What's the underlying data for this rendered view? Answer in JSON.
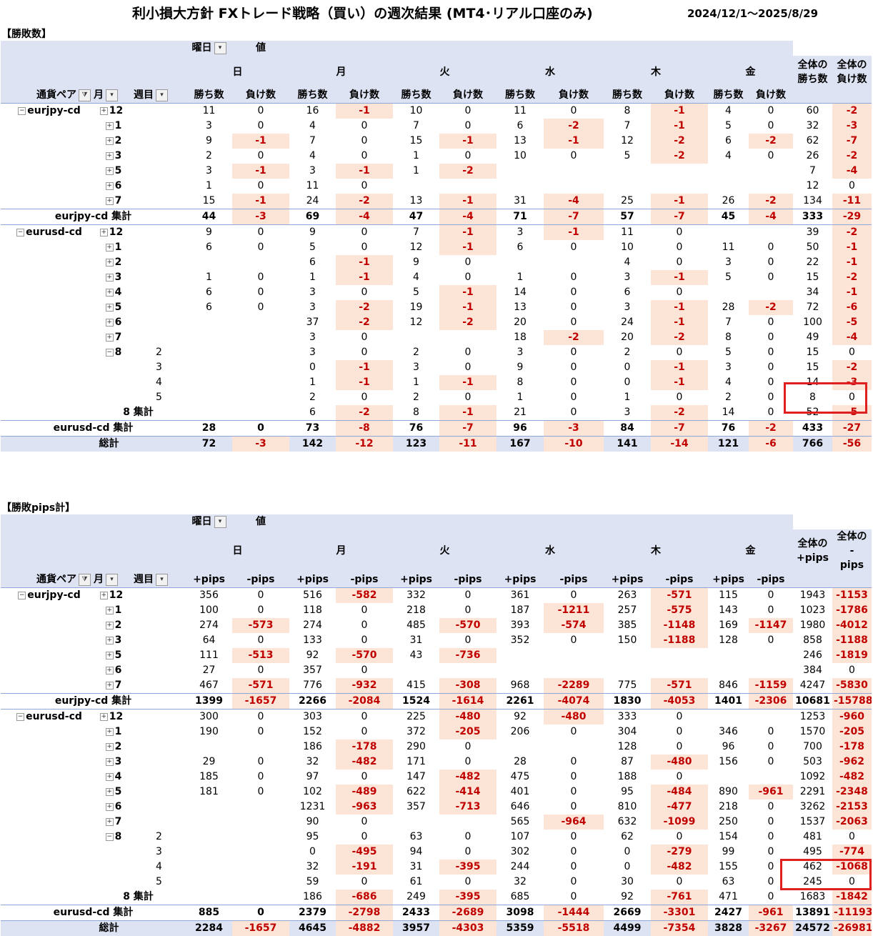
{
  "title": "利小損大方針 FXトレード戦略（買い）の週次結果 (MT4･リアル口座のみ)",
  "date_range": "2024/12/1～2025/8/29",
  "headers": {
    "weekday": "曜日",
    "value": "値",
    "pair": "通貨ペア",
    "month": "月",
    "week": "週目",
    "days": [
      "日",
      "月",
      "火",
      "水",
      "木",
      "金"
    ],
    "total_win": "全体の\n勝ち数",
    "total_loss": "全体の\n負け数",
    "total_pp": "全体の\n+pips",
    "total_mp": "全体の -\npips",
    "win": "勝ち数",
    "loss": "負け数",
    "pp": "+pips",
    "mp": "-pips"
  },
  "count_section": {
    "label": "【勝敗数】",
    "rows": [
      {
        "type": "m",
        "pair": "eurjpy-cd",
        "exp": "⊟",
        "m": "12",
        "w": "",
        "v": [
          "11",
          "0",
          "16",
          "-1",
          "10",
          "0",
          "11",
          "0",
          "8",
          "-1",
          "4",
          "0",
          "60",
          "-2"
        ]
      },
      {
        "type": "m",
        "m": "1",
        "v": [
          "3",
          "0",
          "4",
          "0",
          "7",
          "0",
          "6",
          "-2",
          "7",
          "-1",
          "5",
          "0",
          "32",
          "-3"
        ]
      },
      {
        "type": "m",
        "m": "2",
        "v": [
          "9",
          "-1",
          "7",
          "0",
          "15",
          "-1",
          "13",
          "-1",
          "12",
          "-2",
          "6",
          "-2",
          "62",
          "-7"
        ]
      },
      {
        "type": "m",
        "m": "3",
        "v": [
          "2",
          "0",
          "4",
          "0",
          "1",
          "0",
          "10",
          "0",
          "5",
          "-2",
          "4",
          "0",
          "26",
          "-2"
        ]
      },
      {
        "type": "m",
        "m": "5",
        "v": [
          "3",
          "-1",
          "3",
          "-1",
          "1",
          "-2",
          "",
          "",
          "",
          "",
          "",
          "",
          "7",
          "-4"
        ]
      },
      {
        "type": "m",
        "m": "6",
        "v": [
          "1",
          "0",
          "11",
          "0",
          "",
          "",
          "",
          "",
          "",
          "",
          "",
          "",
          "12",
          "0"
        ]
      },
      {
        "type": "m",
        "m": "7",
        "v": [
          "15",
          "-1",
          "24",
          "-2",
          "13",
          "-1",
          "31",
          "-4",
          "25",
          "-1",
          "26",
          "-2",
          "134",
          "-11"
        ]
      },
      {
        "type": "sub",
        "label": "eurjpy-cd 集計",
        "v": [
          "44",
          "-3",
          "69",
          "-4",
          "47",
          "-4",
          "71",
          "-7",
          "57",
          "-7",
          "45",
          "-4",
          "333",
          "-29"
        ]
      },
      {
        "type": "m",
        "pair": "eurusd-cd",
        "exp": "⊟",
        "m": "12",
        "v": [
          "9",
          "0",
          "9",
          "0",
          "7",
          "-1",
          "3",
          "-1",
          "11",
          "0",
          "",
          "",
          "39",
          "-2"
        ]
      },
      {
        "type": "m",
        "m": "1",
        "v": [
          "6",
          "0",
          "5",
          "0",
          "12",
          "-1",
          "6",
          "0",
          "10",
          "0",
          "11",
          "0",
          "50",
          "-1"
        ]
      },
      {
        "type": "m",
        "m": "2",
        "v": [
          "",
          "",
          "6",
          "-1",
          "9",
          "0",
          "",
          "",
          "4",
          "0",
          "3",
          "0",
          "22",
          "-1"
        ]
      },
      {
        "type": "m",
        "m": "3",
        "v": [
          "1",
          "0",
          "1",
          "-1",
          "4",
          "0",
          "1",
          "0",
          "3",
          "-1",
          "5",
          "0",
          "15",
          "-2"
        ]
      },
      {
        "type": "m",
        "m": "4",
        "v": [
          "6",
          "0",
          "3",
          "0",
          "5",
          "-1",
          "14",
          "0",
          "6",
          "0",
          "",
          "",
          "34",
          "-1"
        ]
      },
      {
        "type": "m",
        "m": "5",
        "v": [
          "6",
          "0",
          "3",
          "-2",
          "19",
          "-1",
          "13",
          "0",
          "3",
          "-1",
          "28",
          "-2",
          "72",
          "-6"
        ]
      },
      {
        "type": "m",
        "m": "6",
        "v": [
          "",
          "",
          "37",
          "-2",
          "12",
          "-2",
          "20",
          "0",
          "24",
          "-1",
          "7",
          "0",
          "100",
          "-5"
        ]
      },
      {
        "type": "m",
        "m": "7",
        "v": [
          "",
          "",
          "3",
          "0",
          "",
          "",
          "18",
          "-2",
          "20",
          "-2",
          "8",
          "0",
          "49",
          "-4"
        ]
      },
      {
        "type": "m",
        "m": "8",
        "mexp": "⊟",
        "w": "2",
        "v": [
          "",
          "",
          "3",
          "0",
          "2",
          "0",
          "3",
          "0",
          "2",
          "0",
          "5",
          "0",
          "15",
          "0"
        ]
      },
      {
        "type": "w",
        "w": "3",
        "v": [
          "",
          "",
          "0",
          "-1",
          "3",
          "0",
          "9",
          "0",
          "0",
          "-1",
          "3",
          "0",
          "15",
          "-2"
        ]
      },
      {
        "type": "w",
        "w": "4",
        "v": [
          "",
          "",
          "1",
          "-1",
          "1",
          "-1",
          "8",
          "0",
          "0",
          "-1",
          "4",
          "0",
          "14",
          "-3"
        ]
      },
      {
        "type": "w",
        "w": "5",
        "v": [
          "",
          "",
          "2",
          "0",
          "2",
          "0",
          "1",
          "0",
          "1",
          "0",
          "2",
          "0",
          "8",
          "0"
        ]
      },
      {
        "type": "msub",
        "label": "8 集計",
        "v": [
          "",
          "",
          "6",
          "-2",
          "8",
          "-1",
          "21",
          "0",
          "3",
          "-2",
          "14",
          "0",
          "52",
          "-5"
        ]
      },
      {
        "type": "sub",
        "label": "eurusd-cd 集計",
        "v": [
          "28",
          "0",
          "73",
          "-8",
          "76",
          "-7",
          "96",
          "-3",
          "84",
          "-7",
          "76",
          "-2",
          "433",
          "-27"
        ]
      },
      {
        "type": "grand",
        "label": "総計",
        "v": [
          "72",
          "-3",
          "142",
          "-12",
          "123",
          "-11",
          "167",
          "-10",
          "141",
          "-14",
          "121",
          "-6",
          "766",
          "-56"
        ]
      }
    ]
  },
  "pips_section": {
    "label": "【勝敗pips計】",
    "rows": [
      {
        "type": "m",
        "pair": "eurjpy-cd",
        "exp": "⊟",
        "m": "12",
        "v": [
          "356",
          "0",
          "516",
          "-582",
          "332",
          "0",
          "361",
          "0",
          "263",
          "-571",
          "115",
          "0",
          "1943",
          "-1153"
        ]
      },
      {
        "type": "m",
        "m": "1",
        "v": [
          "100",
          "0",
          "118",
          "0",
          "218",
          "0",
          "187",
          "-1211",
          "257",
          "-575",
          "143",
          "0",
          "1023",
          "-1786"
        ]
      },
      {
        "type": "m",
        "m": "2",
        "v": [
          "274",
          "-573",
          "274",
          "0",
          "485",
          "-570",
          "393",
          "-574",
          "385",
          "-1148",
          "169",
          "-1147",
          "1980",
          "-4012"
        ]
      },
      {
        "type": "m",
        "m": "3",
        "v": [
          "64",
          "0",
          "133",
          "0",
          "31",
          "0",
          "352",
          "0",
          "150",
          "-1188",
          "128",
          "0",
          "858",
          "-1188"
        ]
      },
      {
        "type": "m",
        "m": "5",
        "v": [
          "111",
          "-513",
          "92",
          "-570",
          "43",
          "-736",
          "",
          "",
          "",
          "",
          "",
          "",
          "246",
          "-1819"
        ]
      },
      {
        "type": "m",
        "m": "6",
        "v": [
          "27",
          "0",
          "357",
          "0",
          "",
          "",
          "",
          "",
          "",
          "",
          "",
          "",
          "384",
          "0"
        ]
      },
      {
        "type": "m",
        "m": "7",
        "v": [
          "467",
          "-571",
          "776",
          "-932",
          "415",
          "-308",
          "968",
          "-2289",
          "775",
          "-571",
          "846",
          "-1159",
          "4247",
          "-5830"
        ]
      },
      {
        "type": "sub",
        "label": "eurjpy-cd 集計",
        "v": [
          "1399",
          "-1657",
          "2266",
          "-2084",
          "1524",
          "-1614",
          "2261",
          "-4074",
          "1830",
          "-4053",
          "1401",
          "-2306",
          "10681",
          "-15788"
        ]
      },
      {
        "type": "m",
        "pair": "eurusd-cd",
        "exp": "⊟",
        "m": "12",
        "v": [
          "300",
          "0",
          "303",
          "0",
          "225",
          "-480",
          "92",
          "-480",
          "333",
          "0",
          "",
          "",
          "1253",
          "-960"
        ]
      },
      {
        "type": "m",
        "m": "1",
        "v": [
          "190",
          "0",
          "152",
          "0",
          "372",
          "-205",
          "206",
          "0",
          "304",
          "0",
          "346",
          "0",
          "1570",
          "-205"
        ]
      },
      {
        "type": "m",
        "m": "2",
        "v": [
          "",
          "",
          "186",
          "-178",
          "290",
          "0",
          "",
          "",
          "128",
          "0",
          "96",
          "0",
          "700",
          "-178"
        ]
      },
      {
        "type": "m",
        "m": "3",
        "v": [
          "29",
          "0",
          "32",
          "-482",
          "171",
          "0",
          "28",
          "0",
          "87",
          "-480",
          "156",
          "0",
          "503",
          "-962"
        ]
      },
      {
        "type": "m",
        "m": "4",
        "v": [
          "185",
          "0",
          "97",
          "0",
          "147",
          "-482",
          "475",
          "0",
          "188",
          "0",
          "",
          "",
          "1092",
          "-482"
        ]
      },
      {
        "type": "m",
        "m": "5",
        "v": [
          "181",
          "0",
          "102",
          "-489",
          "622",
          "-414",
          "401",
          "0",
          "95",
          "-484",
          "890",
          "-961",
          "2291",
          "-2348"
        ]
      },
      {
        "type": "m",
        "m": "6",
        "v": [
          "",
          "",
          "1231",
          "-963",
          "357",
          "-713",
          "646",
          "0",
          "810",
          "-477",
          "218",
          "0",
          "3262",
          "-2153"
        ]
      },
      {
        "type": "m",
        "m": "7",
        "v": [
          "",
          "",
          "90",
          "0",
          "",
          "",
          "565",
          "-964",
          "632",
          "-1099",
          "250",
          "0",
          "1537",
          "-2063"
        ]
      },
      {
        "type": "m",
        "m": "8",
        "mexp": "⊟",
        "w": "2",
        "v": [
          "",
          "",
          "95",
          "0",
          "63",
          "0",
          "107",
          "0",
          "62",
          "0",
          "154",
          "0",
          "481",
          "0"
        ]
      },
      {
        "type": "w",
        "w": "3",
        "v": [
          "",
          "",
          "0",
          "-495",
          "94",
          "0",
          "302",
          "0",
          "0",
          "-279",
          "99",
          "0",
          "495",
          "-774"
        ]
      },
      {
        "type": "w",
        "w": "4",
        "v": [
          "",
          "",
          "32",
          "-191",
          "31",
          "-395",
          "244",
          "0",
          "0",
          "-482",
          "155",
          "0",
          "462",
          "-1068"
        ]
      },
      {
        "type": "w",
        "w": "5",
        "v": [
          "",
          "",
          "59",
          "0",
          "61",
          "0",
          "32",
          "0",
          "30",
          "0",
          "63",
          "0",
          "245",
          "0"
        ]
      },
      {
        "type": "msub",
        "label": "8 集計",
        "v": [
          "",
          "",
          "186",
          "-686",
          "249",
          "-395",
          "685",
          "0",
          "92",
          "-761",
          "471",
          "0",
          "1683",
          "-1842"
        ]
      },
      {
        "type": "sub",
        "label": "eurusd-cd 集計",
        "v": [
          "885",
          "0",
          "2379",
          "-2798",
          "2433",
          "-2689",
          "3098",
          "-1444",
          "2669",
          "-3301",
          "2427",
          "-961",
          "13891",
          "-11193"
        ]
      },
      {
        "type": "grand",
        "label": "総計",
        "v": [
          "2284",
          "-1657",
          "4645",
          "-4882",
          "3957",
          "-4303",
          "5359",
          "-5518",
          "4499",
          "-7354",
          "3828",
          "-3267",
          "24572",
          "-26981"
        ]
      }
    ]
  }
}
